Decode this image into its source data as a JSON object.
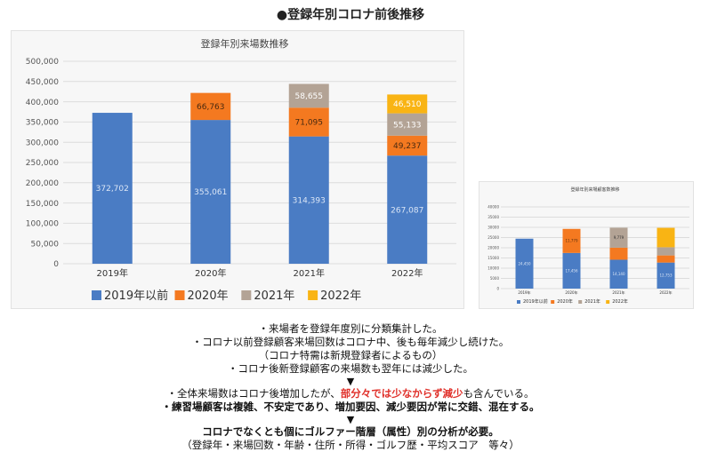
{
  "page_title": "●登録年別コロナ前後推移",
  "colors": {
    "before_2019": "#4a7cc4",
    "y2020": "#f47920",
    "y2021": "#b3a395",
    "y2022": "#f9b414",
    "highlight": "#e0302a"
  },
  "chart_data": [
    {
      "type": "bar",
      "stacked": true,
      "title": "登録年別来場数推移",
      "categories": [
        "2019年",
        "2020年",
        "2021年",
        "2022年"
      ],
      "series": [
        {
          "name": "2019年以前",
          "values": [
            372702,
            355061,
            314393,
            267087
          ]
        },
        {
          "name": "2020年",
          "values": [
            0,
            66763,
            71095,
            49237
          ]
        },
        {
          "name": "2021年",
          "values": [
            0,
            0,
            58655,
            55133
          ]
        },
        {
          "name": "2022年",
          "values": [
            0,
            0,
            0,
            46510
          ]
        }
      ],
      "data_labels": {
        "2019年以前": [
          "372,702",
          "355,061",
          "314,393",
          "267,087"
        ],
        "2020年": [
          "",
          "66,763",
          "71,095",
          "49,237"
        ],
        "2021年": [
          "",
          "",
          "58,655",
          "55,133"
        ],
        "2022年": [
          "",
          "",
          "",
          "46,510"
        ]
      },
      "yticks": [
        "0",
        "50,000",
        "100,000",
        "150,000",
        "200,000",
        "250,000",
        "300,000",
        "350,000",
        "400,000",
        "450,000",
        "500,000"
      ],
      "ylim": [
        0,
        500000
      ],
      "grid": true,
      "legend": "bottom"
    },
    {
      "type": "bar",
      "stacked": true,
      "title": "登録年別来場顧客数推移",
      "categories": [
        "2019年",
        "2020年",
        "2021年",
        "2022年"
      ],
      "series": [
        {
          "name": "2019年以前",
          "values": [
            24450,
            17456,
            14140,
            12753
          ]
        },
        {
          "name": "2020年",
          "values": [
            0,
            11779,
            5900,
            3500
          ]
        },
        {
          "name": "2021年",
          "values": [
            0,
            0,
            9779,
            4000
          ]
        },
        {
          "name": "2022年",
          "values": [
            0,
            0,
            0,
            9500
          ]
        }
      ],
      "data_labels": {
        "2019年以前": [
          "24,450",
          "17,456",
          "14,140",
          "12,753"
        ],
        "2020年": [
          "",
          "11,779",
          "",
          ""
        ],
        "2021年": [
          "",
          "",
          "9,779",
          ""
        ],
        "2022年": [
          "",
          "",
          "",
          ""
        ]
      },
      "yticks": [
        "0",
        "5000",
        "10000",
        "15000",
        "20000",
        "25000",
        "30000",
        "35000",
        "40000"
      ],
      "ylim": [
        0,
        40000
      ],
      "grid": true,
      "legend": "bottom"
    }
  ],
  "notes": {
    "l1": "・来場者を登録年度別に分類集計した。",
    "l2": "・コロナ以前登録顧客来場回数はコロナ中、後も毎年減少し続けた。",
    "l3": "（コロナ特需は新規登録者によるもの）",
    "l4": "・コロナ後新登録顧客の来場数も翌年には減少した。",
    "arrow": "▼",
    "l5a": "・全体来場数はコロナ後増加したが、",
    "l5b": "部分々では少なからず減少",
    "l5c": "も含んでいる。",
    "l6": "・練習場顧客は複雑、不安定であり、増加要因、減少要因が常に交錯、混在する。",
    "l7": "コロナでなくとも個にゴルファー階層（属性）別の分析が必要。",
    "l8": "（登録年・来場回数・年齢・住所・所得・ゴルフ歴・平均スコア　等々）"
  }
}
